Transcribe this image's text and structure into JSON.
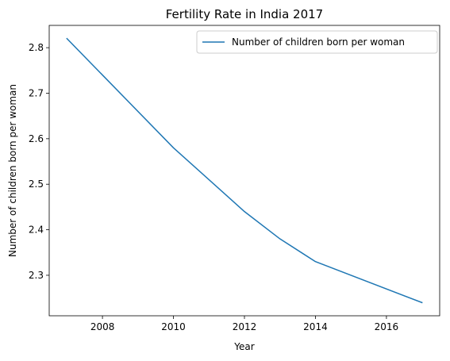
{
  "chart_data": {
    "type": "line",
    "title": "Fertility Rate in India 2017",
    "xlabel": "Year",
    "ylabel": "Number of children born per woman",
    "x": [
      2007,
      2010,
      2012,
      2013,
      2014,
      2017
    ],
    "series": [
      {
        "name": "Number of children born per woman",
        "values": [
          2.82,
          2.58,
          2.44,
          2.38,
          2.33,
          2.24
        ],
        "color": "#1f77b4"
      }
    ],
    "xlim": [
      2006.5,
      2017.5
    ],
    "ylim": [
      2.211,
      2.849
    ],
    "xticks": [
      2008,
      2010,
      2012,
      2014,
      2016
    ],
    "yticks": [
      "2.3",
      "2.4",
      "2.5",
      "2.6",
      "2.7",
      "2.8"
    ],
    "grid": false,
    "legend": "top-right"
  }
}
